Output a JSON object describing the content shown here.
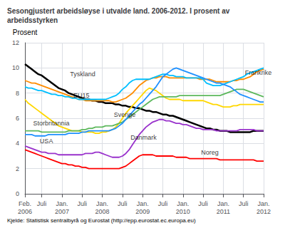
{
  "chart_data": {
    "type": "line",
    "title": "Sesongjustert arbeidsløyse i utvalde land. 2006-2012. I prosent av\narbeidsstyrken",
    "y_label": "Prosent",
    "source": "Kjelde: Statistisk sentralbyrå og Eurostat (http://epp.eurostat.ec.europa.eu)",
    "grid": true,
    "categories": [
      "Feb.\n2006",
      null,
      null,
      null,
      null,
      "Juli",
      null,
      null,
      null,
      null,
      null,
      "Jan.\n2007",
      null,
      null,
      null,
      null,
      null,
      "Juli",
      null,
      null,
      null,
      null,
      null,
      "Jan.\n2008",
      null,
      null,
      null,
      null,
      null,
      "Juli",
      null,
      null,
      null,
      null,
      null,
      "Jan.\n2009",
      null,
      null,
      null,
      null,
      null,
      "Juli",
      null,
      null,
      null,
      null,
      null,
      "Jan.\n2010",
      null,
      null,
      null,
      null,
      null,
      "Juli",
      null,
      null,
      null,
      null,
      null,
      "Jan.\n2011",
      null,
      null,
      null,
      null,
      null,
      "Juli",
      null,
      null,
      null,
      null,
      null,
      "Jan.\n2012"
    ],
    "xlim": [
      0,
      71
    ],
    "ylim": [
      0,
      12
    ],
    "yticks": [
      0,
      2,
      4,
      6,
      8,
      10,
      12
    ],
    "series": [
      {
        "name": "Tyskland",
        "color": "#000000",
        "values": [
          10.3,
          10.1,
          9.9,
          9.7,
          9.5,
          9.4,
          9.2,
          9.0,
          8.8,
          8.6,
          8.4,
          8.3,
          8.2,
          8.0,
          7.9,
          7.8,
          7.7,
          7.6,
          7.5,
          7.5,
          7.4,
          7.4,
          7.3,
          7.3,
          7.2,
          7.2,
          7.2,
          7.1,
          7.1,
          7.0,
          7.0,
          6.9,
          6.9,
          6.8,
          6.8,
          6.7,
          6.6,
          6.6,
          6.5,
          6.5,
          6.4,
          6.3,
          6.3,
          6.2,
          6.2,
          6.1,
          6.0,
          5.9,
          5.8,
          5.7,
          5.6,
          5.5,
          5.4,
          5.3,
          5.2,
          5.2,
          5.1,
          5.1,
          5.0,
          5.0,
          5.0,
          4.9,
          4.9,
          4.9,
          4.9,
          4.9,
          4.9,
          4.9,
          5.0,
          5.0,
          5.0,
          5.0
        ]
      },
      {
        "name": "EU15",
        "color": "#ff8c00",
        "values": [
          9.0,
          8.9,
          8.8,
          8.8,
          8.7,
          8.6,
          8.5,
          8.4,
          8.3,
          8.2,
          8.1,
          8.0,
          7.9,
          7.8,
          7.7,
          7.6,
          7.5,
          7.5,
          7.4,
          7.4,
          7.4,
          7.4,
          7.4,
          7.4,
          7.4,
          7.4,
          7.3,
          7.3,
          7.4,
          7.5,
          7.6,
          7.8,
          8.0,
          8.3,
          8.6,
          8.8,
          9.0,
          9.1,
          9.2,
          9.2,
          9.3,
          9.3,
          9.3,
          9.2,
          9.2,
          9.2,
          9.2,
          9.2,
          9.2,
          9.2,
          9.2,
          9.2,
          9.1,
          9.1,
          9.1,
          9.1,
          9.0,
          8.9,
          8.9,
          8.9,
          8.9,
          8.9,
          9.0,
          9.0,
          9.1,
          9.1,
          9.2,
          9.3,
          9.5,
          9.7,
          9.8,
          9.9
        ]
      },
      {
        "name": "Frankrike",
        "color": "#00bfff",
        "values": [
          8.5,
          8.4,
          8.4,
          8.3,
          8.2,
          8.2,
          8.1,
          8.0,
          7.9,
          7.9,
          7.8,
          7.8,
          7.7,
          7.7,
          7.6,
          7.6,
          7.5,
          7.5,
          7.5,
          7.5,
          7.5,
          7.5,
          7.5,
          7.5,
          7.5,
          7.6,
          7.7,
          7.8,
          8.0,
          8.3,
          8.5,
          8.8,
          9.0,
          9.1,
          9.1,
          9.1,
          9.1,
          9.1,
          9.2,
          9.3,
          9.4,
          9.5,
          9.5,
          9.4,
          9.4,
          9.3,
          9.3,
          9.3,
          9.2,
          9.2,
          9.2,
          9.2,
          9.2,
          9.1,
          8.8,
          8.7,
          8.6,
          8.6,
          8.6,
          8.7,
          8.8,
          8.9,
          9.0,
          9.1,
          9.2,
          9.3,
          9.5,
          9.6,
          9.7,
          9.8,
          9.9,
          10.0
        ]
      },
      {
        "name": "Sverige",
        "color": "#ffd700",
        "values": [
          7.5,
          7.2,
          7.0,
          6.8,
          6.6,
          6.4,
          6.2,
          6.0,
          5.8,
          5.6,
          5.4,
          5.3,
          5.2,
          5.1,
          5.0,
          5.0,
          5.0,
          4.9,
          4.9,
          4.9,
          4.9,
          4.8,
          4.8,
          4.9,
          4.9,
          5.0,
          5.1,
          5.3,
          5.6,
          6.0,
          6.4,
          6.7,
          7.0,
          7.3,
          7.6,
          7.9,
          8.2,
          8.4,
          8.3,
          8.2,
          8.0,
          7.8,
          7.6,
          7.5,
          7.5,
          7.5,
          7.5,
          7.4,
          7.4,
          7.4,
          7.4,
          7.4,
          7.4,
          7.4,
          7.3,
          7.2,
          7.1,
          7.1,
          7.0,
          6.9,
          6.9,
          6.9,
          7.0,
          7.0,
          7.1,
          7.1,
          7.1,
          7.1,
          7.1,
          7.1,
          7.1,
          7.1
        ]
      },
      {
        "name": "Danmark",
        "color": "#9932cc",
        "values": [
          3.8,
          3.7,
          3.6,
          3.5,
          3.4,
          3.3,
          3.3,
          3.2,
          3.2,
          3.2,
          3.1,
          3.1,
          3.1,
          3.1,
          3.1,
          3.1,
          3.1,
          3.1,
          3.2,
          3.2,
          3.2,
          3.3,
          3.3,
          3.2,
          3.1,
          3.0,
          2.9,
          2.9,
          2.9,
          3.0,
          3.2,
          3.5,
          3.9,
          4.3,
          4.7,
          5.0,
          5.3,
          5.5,
          5.7,
          5.8,
          5.9,
          5.9,
          5.8,
          5.8,
          5.7,
          5.6,
          5.6,
          5.5,
          5.5,
          5.4,
          5.3,
          5.2,
          5.2,
          5.1,
          5.1,
          5.1,
          5.1,
          5.0,
          5.0,
          5.0,
          5.0,
          5.0,
          5.0,
          5.0,
          5.1,
          5.1,
          5.1,
          5.1,
          5.1,
          5.0,
          5.0,
          5.0
        ]
      },
      {
        "name": "Storbritannia",
        "color": "#5db85d",
        "values": [
          5.0,
          5.0,
          5.0,
          5.0,
          5.0,
          4.9,
          4.9,
          4.9,
          4.9,
          4.9,
          4.9,
          4.9,
          4.9,
          5.0,
          5.0,
          5.0,
          5.0,
          5.1,
          5.1,
          5.2,
          5.2,
          5.3,
          5.3,
          5.3,
          5.4,
          5.4,
          5.4,
          5.5,
          5.6,
          5.7,
          5.9,
          6.1,
          6.3,
          6.5,
          6.7,
          6.9,
          7.1,
          7.3,
          7.5,
          7.6,
          7.7,
          7.7,
          7.7,
          7.7,
          7.7,
          7.7,
          7.8,
          7.8,
          7.8,
          7.8,
          7.8,
          7.8,
          7.8,
          7.8,
          7.8,
          7.8,
          7.8,
          7.8,
          7.8,
          7.9,
          8.0,
          8.1,
          8.2,
          8.3,
          8.3,
          8.3,
          8.2,
          8.1,
          8.0,
          7.9,
          7.8,
          7.7
        ]
      },
      {
        "name": "USA",
        "color": "#1e90ff",
        "values": [
          4.7,
          4.7,
          4.7,
          4.6,
          4.6,
          4.6,
          4.6,
          4.7,
          4.7,
          4.7,
          4.7,
          4.7,
          4.7,
          4.8,
          4.8,
          4.8,
          4.8,
          4.9,
          4.9,
          5.0,
          5.0,
          5.0,
          5.0,
          5.0,
          5.0,
          5.0,
          5.1,
          5.2,
          5.4,
          5.6,
          5.9,
          6.2,
          6.5,
          6.8,
          7.1,
          7.3,
          7.6,
          7.9,
          8.2,
          8.5,
          8.9,
          9.3,
          9.5,
          9.7,
          9.9,
          10.0,
          9.9,
          9.8,
          9.7,
          9.6,
          9.5,
          9.4,
          9.3,
          9.2,
          9.1,
          9.0,
          8.9,
          8.8,
          8.8,
          8.7,
          8.6,
          8.5,
          8.3,
          8.1,
          7.9,
          7.8,
          7.7,
          7.6,
          7.5,
          7.4,
          7.3,
          7.3
        ]
      },
      {
        "name": "Noreg",
        "color": "#ff0000",
        "values": [
          3.5,
          3.4,
          3.3,
          3.2,
          3.1,
          3.0,
          2.9,
          2.8,
          2.7,
          2.6,
          2.5,
          2.4,
          2.4,
          2.3,
          2.3,
          2.2,
          2.2,
          2.1,
          2.1,
          2.0,
          2.0,
          2.0,
          2.0,
          2.0,
          2.0,
          2.0,
          2.0,
          2.0,
          2.0,
          2.1,
          2.2,
          2.4,
          2.6,
          2.8,
          3.0,
          3.1,
          3.1,
          3.1,
          3.1,
          3.0,
          3.0,
          3.0,
          3.0,
          3.0,
          3.0,
          2.9,
          2.9,
          2.9,
          2.9,
          2.8,
          2.8,
          2.8,
          2.8,
          2.8,
          2.8,
          2.8,
          2.8,
          2.8,
          2.7,
          2.7,
          2.7,
          2.7,
          2.7,
          2.7,
          2.7,
          2.7,
          2.7,
          2.7,
          2.7,
          2.6,
          2.6,
          2.6
        ]
      }
    ],
    "annotations": [
      {
        "text": "Tyskland",
        "x": 13,
        "y": 9.5
      },
      {
        "text": "EU15",
        "x": 14,
        "y": 7.8
      },
      {
        "text": "Frankrike",
        "x": 65,
        "y": 9.65
      },
      {
        "text": "Sverige",
        "x": 26,
        "y": 6.3
      },
      {
        "text": "Danmark",
        "x": 31,
        "y": 4.5
      },
      {
        "text": "Storbritannia",
        "x": 2,
        "y": 5.6
      },
      {
        "text": "USA",
        "x": 4,
        "y": 4.2
      },
      {
        "text": "Noreg",
        "x": 52,
        "y": 3.3
      }
    ]
  }
}
